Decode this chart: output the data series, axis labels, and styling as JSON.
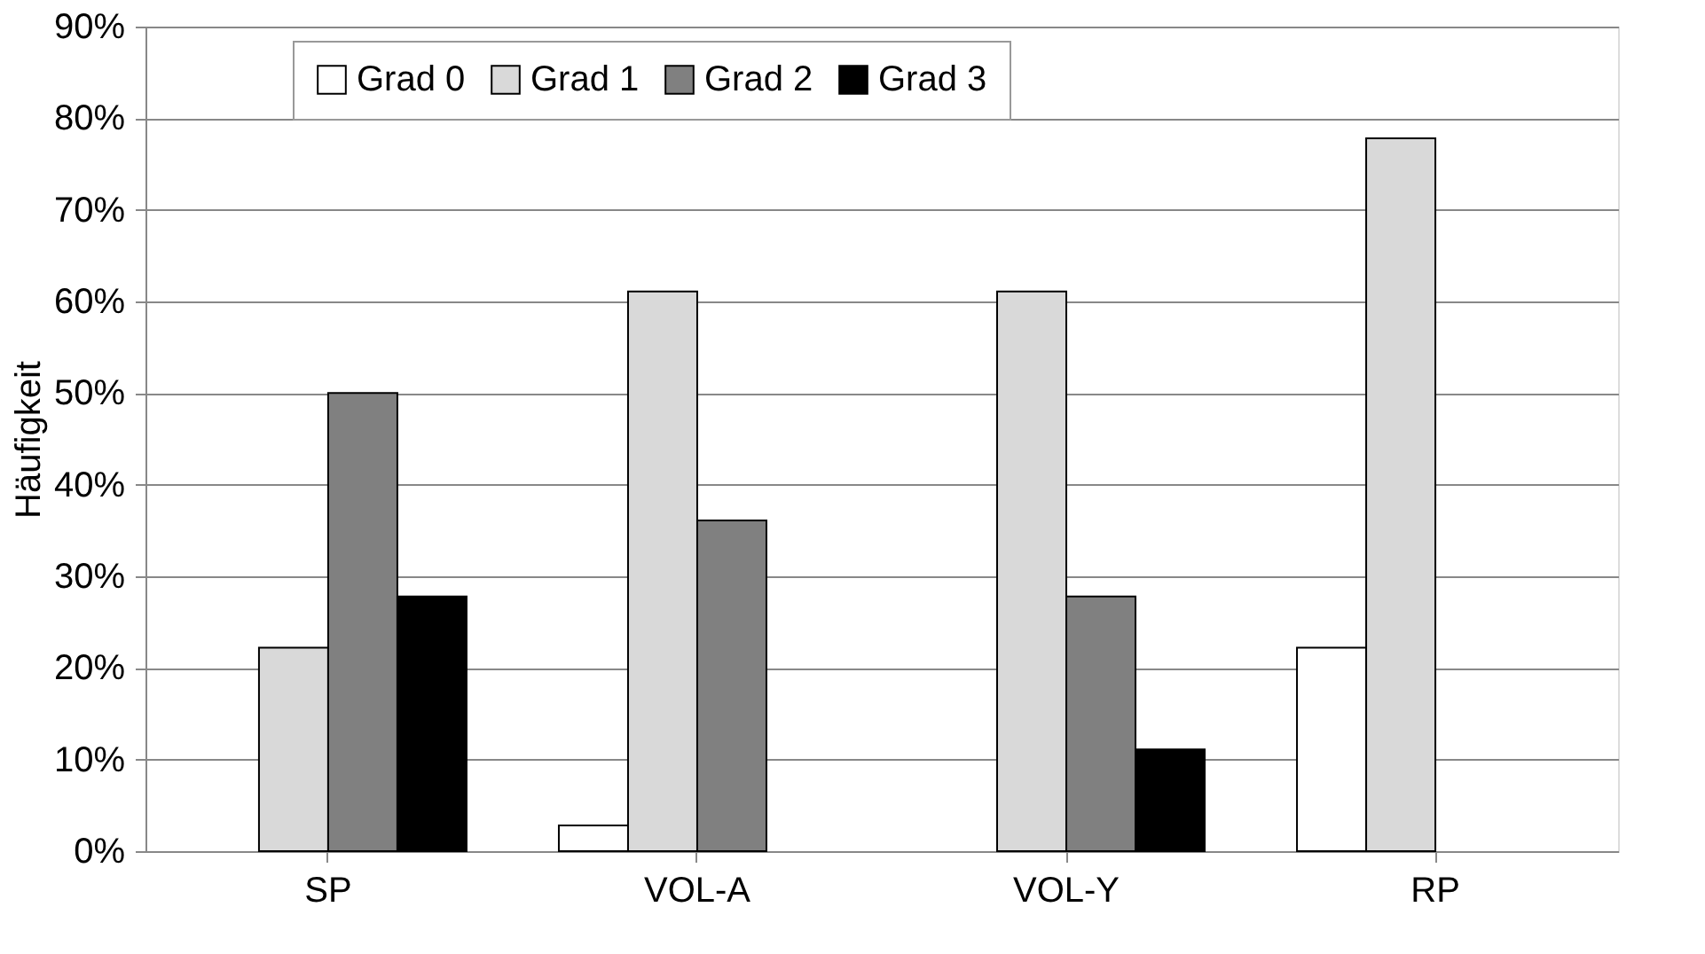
{
  "chart_data": {
    "type": "bar",
    "ylabel": "Häufigkeit",
    "categories": [
      "SP",
      "VOL-A",
      "VOL-Y",
      "RP"
    ],
    "series": [
      {
        "name": "Grad 0",
        "color": "#ffffff",
        "values": [
          null,
          2.8,
          null,
          22.2
        ]
      },
      {
        "name": "Grad 1",
        "color": "#d9d9d9",
        "values": [
          22.2,
          61.1,
          61.1,
          77.8
        ]
      },
      {
        "name": "Grad 2",
        "color": "#808080",
        "values": [
          50,
          36.1,
          27.8,
          null
        ]
      },
      {
        "name": "Grad 3",
        "color": "#000000",
        "values": [
          27.8,
          null,
          11.1,
          null
        ]
      }
    ],
    "ylim": [
      0,
      90
    ],
    "yticks": [
      {
        "value": 0,
        "label": "0%"
      },
      {
        "value": 10,
        "label": "10%"
      },
      {
        "value": 20,
        "label": "20%"
      },
      {
        "value": 30,
        "label": "30%"
      },
      {
        "value": 40,
        "label": "40%"
      },
      {
        "value": 50,
        "label": "50%"
      },
      {
        "value": 60,
        "label": "60%"
      },
      {
        "value": 70,
        "label": "70%"
      },
      {
        "value": 80,
        "label": "80%"
      },
      {
        "value": 90,
        "label": "90%"
      }
    ],
    "grid": "y",
    "legend": "top"
  }
}
